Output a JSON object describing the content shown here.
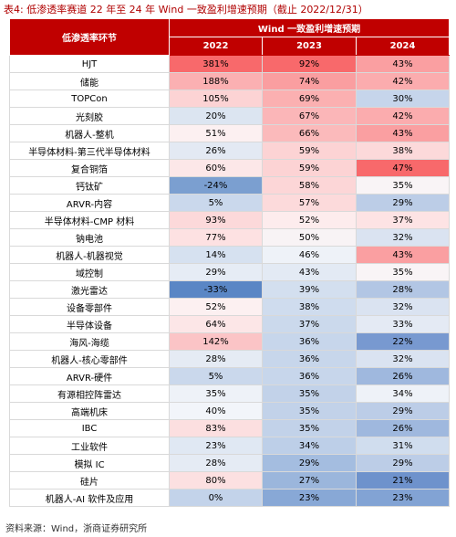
{
  "title": "表4:  低渗透率赛道 22 年至 24 年 Wind 一致盈利增速预期（截止 2022/12/31）",
  "table": {
    "header": {
      "row_label": "低渗透率环节",
      "group": "Wind 一致盈利增速预期",
      "columns": [
        "2022",
        "2023",
        "2024"
      ],
      "color": "#c00000"
    },
    "rows": [
      {
        "label": "HJT",
        "cells": [
          "381%",
          "92%",
          "43%"
        ],
        "colors": [
          "#f8696b",
          "#f8696b",
          "#fa9fa1"
        ]
      },
      {
        "label": "储能",
        "cells": [
          "188%",
          "74%",
          "42%"
        ],
        "colors": [
          "#fbb0b2",
          "#fa9ea0",
          "#fbacae"
        ]
      },
      {
        "label": "TOPCon",
        "cells": [
          "105%",
          "69%",
          "30%"
        ],
        "colors": [
          "#fcd3d4",
          "#fbb0b1",
          "#c6d5eb"
        ]
      },
      {
        "label": "光刻胶",
        "cells": [
          "20%",
          "67%",
          "42%"
        ],
        "colors": [
          "#dce5f1",
          "#fbb6b8",
          "#fbacae"
        ]
      },
      {
        "label": "机器人-整机",
        "cells": [
          "51%",
          "66%",
          "43%"
        ],
        "colors": [
          "#fcf0f1",
          "#fbbabb",
          "#fa9fa1"
        ]
      },
      {
        "label": "半导体材料-第三代半导体材料",
        "cells": [
          "26%",
          "59%",
          "38%"
        ],
        "colors": [
          "#e3e9f3",
          "#fcd3d4",
          "#fcd9da"
        ]
      },
      {
        "label": "复合铜箔",
        "cells": [
          "60%",
          "59%",
          "47%"
        ],
        "colors": [
          "#fce7e8",
          "#fcd3d4",
          "#f8696b"
        ]
      },
      {
        "label": "钙钛矿",
        "cells": [
          "-24%",
          "58%",
          "35%"
        ],
        "colors": [
          "#7b9fd0",
          "#fcd6d7",
          "#f9f4f6"
        ]
      },
      {
        "label": "ARVR-内容",
        "cells": [
          "5%",
          "57%",
          "29%"
        ],
        "colors": [
          "#cad8ec",
          "#fcdadb",
          "#bccde7"
        ]
      },
      {
        "label": "半导体材料-CMP 材料",
        "cells": [
          "93%",
          "52%",
          "37%"
        ],
        "colors": [
          "#fcd9da",
          "#fdeced",
          "#fde3e4"
        ]
      },
      {
        "label": "钠电池",
        "cells": [
          "77%",
          "50%",
          "32%"
        ],
        "colors": [
          "#fde1e2",
          "#f8f3f5",
          "#dae3f1"
        ]
      },
      {
        "label": "机器人-机器视觉",
        "cells": [
          "14%",
          "46%",
          "43%"
        ],
        "colors": [
          "#d6e1f0",
          "#eef2f8",
          "#fa9fa1"
        ]
      },
      {
        "label": "域控制",
        "cells": [
          "29%",
          "43%",
          "35%"
        ],
        "colors": [
          "#e6ecf5",
          "#e3eaf4",
          "#f9f4f6"
        ]
      },
      {
        "label": "激光雷达",
        "cells": [
          "-33%",
          "39%",
          "28%"
        ],
        "colors": [
          "#5a86c5",
          "#d3dfef",
          "#b2c6e4"
        ]
      },
      {
        "label": "设备零部件",
        "cells": [
          "52%",
          "38%",
          "32%"
        ],
        "colors": [
          "#fcf0f1",
          "#cfdcee",
          "#dae3f1"
        ]
      },
      {
        "label": "半导体设备",
        "cells": [
          "64%",
          "37%",
          "33%"
        ],
        "colors": [
          "#fce6e7",
          "#cbd9ec",
          "#e4eaf4"
        ]
      },
      {
        "label": "海风-海缆",
        "cells": [
          "142%",
          "36%",
          "22%"
        ],
        "colors": [
          "#fbc4c6",
          "#c7d6eb",
          "#7899d0"
        ]
      },
      {
        "label": "机器人-核心零部件",
        "cells": [
          "28%",
          "36%",
          "32%"
        ],
        "colors": [
          "#e5ebf4",
          "#c7d6eb",
          "#dae3f1"
        ]
      },
      {
        "label": "ARVR-硬件",
        "cells": [
          "5%",
          "36%",
          "26%"
        ],
        "colors": [
          "#cad8ec",
          "#c7d6eb",
          "#9fb8de"
        ]
      },
      {
        "label": "有源相控阵雷达",
        "cells": [
          "35%",
          "35%",
          "34%"
        ],
        "colors": [
          "#eef2f8",
          "#c2d2e9",
          "#eef2f8"
        ]
      },
      {
        "label": "高端机床",
        "cells": [
          "40%",
          "35%",
          "29%"
        ],
        "colors": [
          "#f2f5fa",
          "#c2d2e9",
          "#bccde7"
        ]
      },
      {
        "label": "IBC",
        "cells": [
          "83%",
          "35%",
          "26%"
        ],
        "colors": [
          "#fcdfe0",
          "#c2d2e9",
          "#9fb8de"
        ]
      },
      {
        "label": "工业软件",
        "cells": [
          "23%",
          "34%",
          "31%"
        ],
        "colors": [
          "#e0e8f3",
          "#bdcfe8",
          "#d0ddee"
        ]
      },
      {
        "label": "模拟 IC",
        "cells": [
          "28%",
          "29%",
          "29%"
        ],
        "colors": [
          "#e5ebf4",
          "#a4bde0",
          "#bccde7"
        ]
      },
      {
        "label": "硅片",
        "cells": [
          "80%",
          "27%",
          "21%"
        ],
        "colors": [
          "#fce0e1",
          "#9bb6dc",
          "#6e92cc"
        ]
      },
      {
        "label": "机器人-AI 软件及应用",
        "cells": [
          "0%",
          "23%",
          "23%"
        ],
        "colors": [
          "#c3d3ea",
          "#88a8d6",
          "#82a3d4"
        ]
      }
    ]
  },
  "source": "资料来源：Wind，浙商证券研究所"
}
